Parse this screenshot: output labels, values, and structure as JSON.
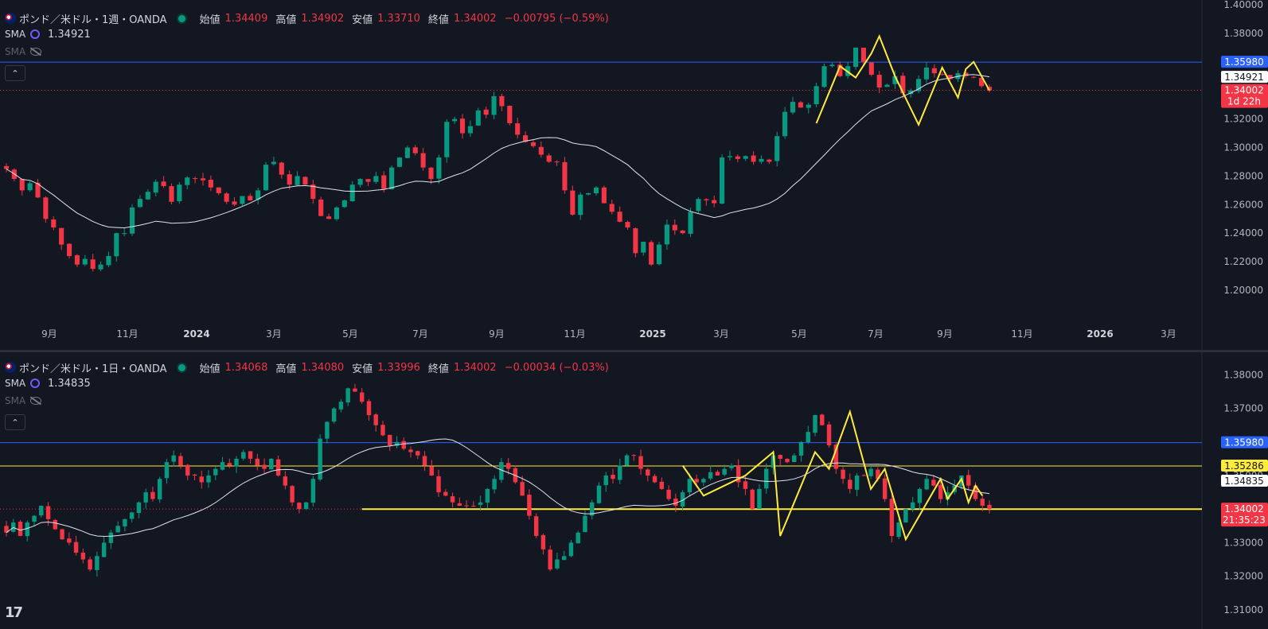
{
  "panes": [
    {
      "symbol": "ポンド／米ドル・1週・OANDA",
      "ohlc": {
        "open_label": "始値",
        "open": "1.34409",
        "high_label": "高値",
        "high": "1.34902",
        "low_label": "安値",
        "low": "1.33710",
        "close_label": "終値",
        "close": "1.34002",
        "change": "−0.00795 (−0.59%)"
      },
      "sma1": {
        "label": "SMA",
        "value": "1.34921"
      },
      "sma2": {
        "label": "SMA"
      },
      "collapse": "⌃",
      "price_tags": {
        "hline": "1.35980",
        "sma": "1.34921",
        "last": "1.34002",
        "countdown": "1d 22h"
      }
    },
    {
      "symbol": "ポンド／米ドル・1日・OANDA",
      "ohlc": {
        "open_label": "始値",
        "open": "1.34068",
        "high_label": "高値",
        "high": "1.34080",
        "low_label": "安値",
        "low": "1.33996",
        "close_label": "終値",
        "close": "1.34002",
        "change": "−0.00034 (−0.03%)"
      },
      "sma1": {
        "label": "SMA",
        "value": "1.34835"
      },
      "sma2": {
        "label": "SMA"
      },
      "collapse": "⌃",
      "price_tags": {
        "hline": "1.35980",
        "yline": "1.35286",
        "sma": "1.34835",
        "last": "1.34002",
        "countdown": "21:35:23"
      }
    }
  ],
  "logo": "17",
  "colors": {
    "up": "#089981",
    "down": "#f23645",
    "sma": "#e0e3eb",
    "hline": "#2962ff",
    "yellow": "#ffeb3b",
    "bg": "#131722"
  },
  "chart_data": [
    {
      "type": "candlestick",
      "title": "ポンド／米ドル・1週・OANDA",
      "xlabel": "",
      "ylabel": "",
      "x_ticks": [
        "9月",
        "11月",
        "2024",
        "3月",
        "5月",
        "7月",
        "9月",
        "11月",
        "2025",
        "3月",
        "5月",
        "7月",
        "9月",
        "11月",
        "2026",
        "3月"
      ],
      "y_ticks": [
        "1.40000",
        "1.38000",
        "1.36000",
        "1.34000",
        "1.32000",
        "1.30000",
        "1.28000",
        "1.26000",
        "1.24000",
        "1.22000",
        "1.20000"
      ],
      "ylim": [
        1.19,
        1.4
      ],
      "hlines": [
        1.3598
      ],
      "last_price": 1.34002,
      "sma_last": 1.34921,
      "closes": [
        1.285,
        1.278,
        1.27,
        1.275,
        1.265,
        1.25,
        1.244,
        1.232,
        1.224,
        1.218,
        1.222,
        1.215,
        1.218,
        1.224,
        1.24,
        1.24,
        1.258,
        1.264,
        1.269,
        1.276,
        1.273,
        1.262,
        1.274,
        1.279,
        1.278,
        1.277,
        1.272,
        1.268,
        1.262,
        1.26,
        1.266,
        1.263,
        1.27,
        1.288,
        1.29,
        1.281,
        1.274,
        1.28,
        1.274,
        1.264,
        1.252,
        1.25,
        1.258,
        1.263,
        1.274,
        1.278,
        1.276,
        1.28,
        1.271,
        1.286,
        1.293,
        1.3,
        1.296,
        1.286,
        1.278,
        1.293,
        1.318,
        1.32,
        1.31,
        1.315,
        1.326,
        1.323,
        1.336,
        1.329,
        1.317,
        1.309,
        1.304,
        1.301,
        1.295,
        1.29,
        1.29,
        1.27,
        1.253,
        1.267,
        1.268,
        1.272,
        1.261,
        1.255,
        1.248,
        1.244,
        1.226,
        1.234,
        1.218,
        1.232,
        1.246,
        1.242,
        1.24,
        1.255,
        1.264,
        1.263,
        1.261,
        1.293,
        1.294,
        1.292,
        1.294,
        1.29,
        1.292,
        1.29,
        1.308,
        1.325,
        1.332,
        1.328,
        1.33,
        1.343,
        1.357,
        1.358,
        1.35,
        1.357,
        1.37,
        1.36,
        1.351,
        1.342,
        1.344,
        1.35,
        1.338,
        1.34,
        1.348,
        1.356,
        1.352,
        1.351,
        1.348,
        1.352,
        1.35,
        1.349,
        1.343,
        1.34
      ]
    },
    {
      "type": "candlestick",
      "title": "ポンド／米ドル・1日・OANDA",
      "xlabel": "",
      "ylabel": "",
      "y_ticks": [
        "1.38000",
        "1.37000",
        "1.36000",
        "1.35000",
        "1.34000",
        "1.33000",
        "1.32000",
        "1.31000"
      ],
      "ylim": [
        1.309,
        1.382
      ],
      "hlines": [
        1.3598,
        1.35286
      ],
      "support_line": 1.34,
      "last_price": 1.34002,
      "sma_last": 1.34835,
      "closes": [
        1.333,
        1.336,
        1.332,
        1.336,
        1.338,
        1.341,
        1.337,
        1.334,
        1.331,
        1.33,
        1.327,
        1.325,
        1.322,
        1.326,
        1.33,
        1.333,
        1.335,
        1.337,
        1.339,
        1.342,
        1.345,
        1.343,
        1.349,
        1.354,
        1.356,
        1.353,
        1.35,
        1.35,
        1.348,
        1.35,
        1.352,
        1.354,
        1.353,
        1.355,
        1.357,
        1.355,
        1.353,
        1.352,
        1.355,
        1.35,
        1.347,
        1.342,
        1.34,
        1.342,
        1.349,
        1.361,
        1.366,
        1.37,
        1.372,
        1.376,
        1.375,
        1.372,
        1.368,
        1.365,
        1.362,
        1.359,
        1.36,
        1.358,
        1.357,
        1.356,
        1.353,
        1.35,
        1.345,
        1.344,
        1.342,
        1.341,
        1.341,
        1.341,
        1.342,
        1.346,
        1.349,
        1.354,
        1.352,
        1.348,
        1.344,
        1.338,
        1.332,
        1.328,
        1.322,
        1.325,
        1.326,
        1.33,
        1.333,
        1.338,
        1.342,
        1.347,
        1.35,
        1.349,
        1.353,
        1.356,
        1.356,
        1.352,
        1.35,
        1.348,
        1.346,
        1.343,
        1.341,
        1.345,
        1.349,
        1.348,
        1.349,
        1.351,
        1.35,
        1.352,
        1.353,
        1.348,
        1.346,
        1.34,
        1.346,
        1.352,
        1.356,
        1.355,
        1.354,
        1.356,
        1.36,
        1.363,
        1.368,
        1.365,
        1.359,
        1.352,
        1.349,
        1.346,
        1.35,
        1.35,
        1.352,
        1.349,
        1.343,
        1.332,
        1.336,
        1.34,
        1.342,
        1.346,
        1.349,
        1.347,
        1.343,
        1.345,
        1.347,
        1.35,
        1.347,
        1.343,
        1.341,
        1.34
      ]
    }
  ]
}
